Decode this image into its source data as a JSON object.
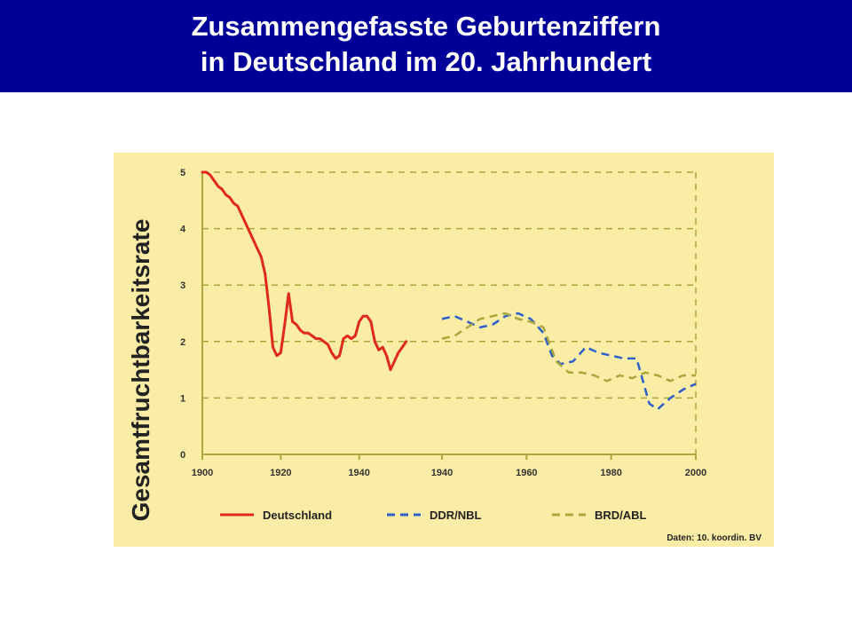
{
  "header": {
    "title_line1": "Zusammengefasste Geburtenziffern",
    "title_line2": "in Deutschland im 20. Jahrhundert",
    "background": "#000099",
    "text_color": "#ffffff"
  },
  "chart_data": {
    "type": "line",
    "ylabel": "Gesamtfruchtbarkeitsrate",
    "xlabel": "",
    "ylim": [
      0,
      5
    ],
    "y_ticks": [
      "0",
      "1",
      "2",
      "3",
      "4",
      "5"
    ],
    "x_tick_labels": [
      "1900",
      "1920",
      "1940",
      "1940",
      "1960",
      "1980",
      "2000"
    ],
    "grid": "horizontal dashed",
    "legend_position": "bottom",
    "source_note": "Daten: 10. koordin. BV",
    "background": "#fbeda6",
    "series": [
      {
        "name": "Deutschland",
        "color": "#e0291b",
        "style": "solid",
        "panel": "left",
        "x": [
          1900,
          1901,
          1902,
          1903,
          1904,
          1905,
          1906,
          1907,
          1908,
          1909,
          1910,
          1911,
          1912,
          1913,
          1914,
          1915,
          1916,
          1917,
          1918,
          1919,
          1920,
          1921,
          1922,
          1923,
          1924,
          1925,
          1926,
          1927,
          1928,
          1929,
          1930,
          1931,
          1932,
          1933,
          1934,
          1935,
          1936,
          1937,
          1938,
          1939,
          1940,
          1941,
          1942,
          1943,
          1944,
          1945,
          1946,
          1947,
          1948,
          1949,
          1950,
          1951,
          1952,
          1953,
          1954,
          1955,
          1956,
          1957,
          1958,
          1959
        ],
        "y": [
          5.0,
          5.0,
          4.95,
          4.85,
          4.75,
          4.7,
          4.6,
          4.55,
          4.45,
          4.4,
          4.25,
          4.1,
          3.95,
          3.8,
          3.65,
          3.5,
          3.2,
          2.6,
          1.9,
          1.75,
          1.8,
          2.3,
          2.85,
          2.35,
          2.3,
          2.2,
          2.15,
          2.15,
          2.1,
          2.05,
          2.05,
          2.0,
          1.95,
          1.8,
          1.7,
          1.75,
          2.05,
          2.1,
          2.05,
          2.1,
          2.35,
          2.45,
          2.45,
          2.35,
          2.0,
          1.85,
          1.9,
          1.75,
          1.5,
          1.65,
          1.8,
          1.9,
          2.0,
          null,
          null,
          null,
          null,
          null,
          null,
          null
        ]
      },
      {
        "name": "DDR/NBL",
        "color": "#2d5fc8",
        "style": "dashed",
        "panel": "right",
        "x": [
          1940,
          1943,
          1946,
          1949,
          1952,
          1955,
          1958,
          1961,
          1964,
          1966,
          1968,
          1971,
          1974,
          1977,
          1980,
          1983,
          1986,
          1989,
          1991,
          1994,
          1997,
          2000
        ],
        "y": [
          2.4,
          2.45,
          2.35,
          2.25,
          2.3,
          2.45,
          2.5,
          2.4,
          2.15,
          1.75,
          1.6,
          1.65,
          1.9,
          1.8,
          1.75,
          1.7,
          1.7,
          0.9,
          0.8,
          1.0,
          1.15,
          1.25
        ]
      },
      {
        "name": "BRD/ABL",
        "color": "#a8a83c",
        "style": "dashed",
        "panel": "right",
        "x": [
          1940,
          1943,
          1946,
          1949,
          1952,
          1955,
          1958,
          1961,
          1964,
          1967,
          1970,
          1973,
          1976,
          1979,
          1982,
          1985,
          1988,
          1991,
          1994,
          1997,
          2000
        ],
        "y": [
          2.05,
          2.1,
          2.25,
          2.4,
          2.45,
          2.5,
          2.4,
          2.35,
          2.25,
          1.65,
          1.45,
          1.45,
          1.4,
          1.3,
          1.4,
          1.35,
          1.45,
          1.4,
          1.3,
          1.4,
          1.4
        ]
      }
    ]
  }
}
